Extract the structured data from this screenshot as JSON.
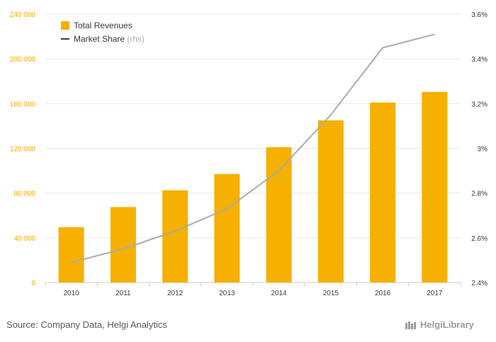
{
  "chart_data": {
    "type": "bar",
    "categories": [
      "2010",
      "2011",
      "2012",
      "2013",
      "2014",
      "2015",
      "2016",
      "2017"
    ],
    "series": [
      {
        "name": "Total Revenues",
        "kind": "bar",
        "axis": "left",
        "color": "#f5b000",
        "values": [
          49500,
          67500,
          82500,
          97000,
          121000,
          145000,
          161000,
          170500
        ]
      },
      {
        "name": "Market Share",
        "name_suffix": "(rhs)",
        "kind": "line",
        "axis": "right",
        "color": "#aaaaaa",
        "values": [
          2.49,
          2.55,
          2.63,
          2.73,
          2.9,
          3.15,
          3.45,
          3.51
        ]
      }
    ],
    "left_axis": {
      "ylim": [
        0,
        240000
      ],
      "ticks": [
        "0",
        "40 000",
        "80 000",
        "120 000",
        "160 000",
        "200 000",
        "240 000"
      ]
    },
    "right_axis": {
      "ylim": [
        2.4,
        3.6
      ],
      "ticks": [
        "2.4%",
        "2.6%",
        "2.8%",
        "3%",
        "3.2%",
        "3.4%",
        "3.6%"
      ]
    },
    "grid": true,
    "legend_position": "top-left",
    "title": "",
    "xlabel": "",
    "ylabel": ""
  },
  "footer": {
    "source": "Source: Company Data, Helgi Analytics",
    "brand": "HelgiLibrary"
  }
}
